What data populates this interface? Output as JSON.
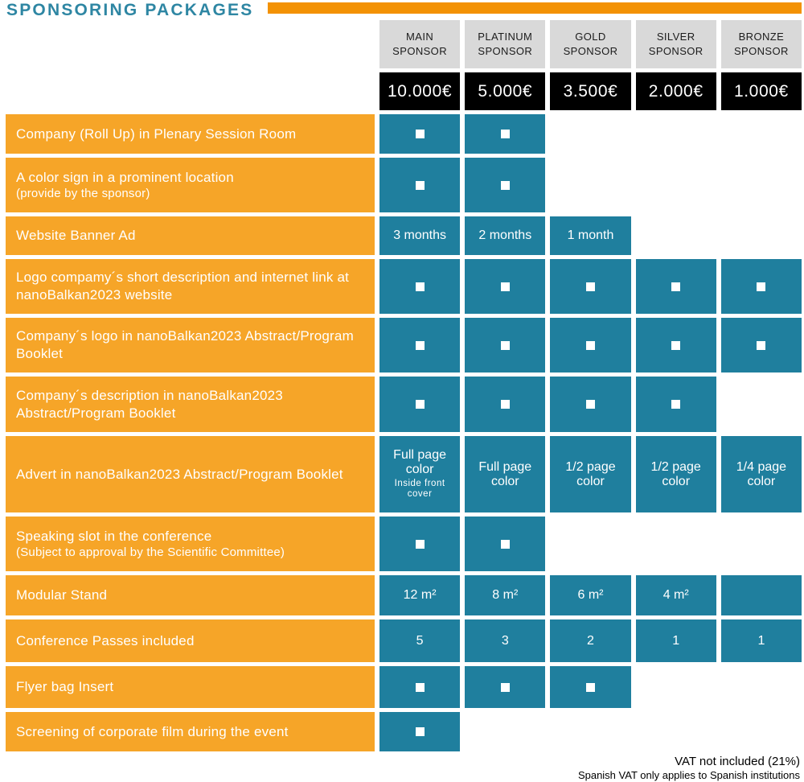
{
  "title": "SPONSORING PACKAGES",
  "columns": [
    {
      "key": "main",
      "label": "MAIN SPONSOR",
      "price": "10.000€"
    },
    {
      "key": "platinum",
      "label": "PLATINUM SPONSOR",
      "price": "5.000€"
    },
    {
      "key": "gold",
      "label": "GOLD SPONSOR",
      "price": "3.500€"
    },
    {
      "key": "silver",
      "label": "SILVER SPONSOR",
      "price": "2.000€"
    },
    {
      "key": "bronze",
      "label": "BRONZE SPONSOR",
      "price": "1.000€"
    }
  ],
  "rows": [
    {
      "label": "Company (Roll Up) in Plenary Session Room",
      "cells": [
        {
          "type": "check"
        },
        {
          "type": "check"
        },
        {
          "type": "none"
        },
        {
          "type": "none"
        },
        {
          "type": "none"
        }
      ]
    },
    {
      "label": "A color sign in a prominent location",
      "sublabel": "(provide by the sponsor)",
      "cells": [
        {
          "type": "check"
        },
        {
          "type": "check"
        },
        {
          "type": "none"
        },
        {
          "type": "none"
        },
        {
          "type": "none"
        }
      ]
    },
    {
      "label": "Website Banner Ad",
      "cells": [
        {
          "type": "text",
          "text": "3 months"
        },
        {
          "type": "text",
          "text": "2 months"
        },
        {
          "type": "text",
          "text": "1 month"
        },
        {
          "type": "none"
        },
        {
          "type": "none"
        }
      ]
    },
    {
      "label": "Logo compamy´s short description and internet link at nanoBalkan2023 website",
      "cells": [
        {
          "type": "check"
        },
        {
          "type": "check"
        },
        {
          "type": "check"
        },
        {
          "type": "check"
        },
        {
          "type": "check"
        }
      ]
    },
    {
      "label": "Company´s logo in nanoBalkan2023 Abstract/Program Booklet",
      "cells": [
        {
          "type": "check"
        },
        {
          "type": "check"
        },
        {
          "type": "check"
        },
        {
          "type": "check"
        },
        {
          "type": "check"
        }
      ]
    },
    {
      "label": "Company´s description in nanoBalkan2023 Abstract/Program Booklet",
      "cells": [
        {
          "type": "check"
        },
        {
          "type": "check"
        },
        {
          "type": "check"
        },
        {
          "type": "check"
        },
        {
          "type": "none"
        }
      ]
    },
    {
      "label": "Advert in nanoBalkan2023 Abstract/Program Booklet",
      "cells": [
        {
          "type": "text",
          "text": "Full page color",
          "subtext": "Inside front cover"
        },
        {
          "type": "text",
          "text": "Full page color"
        },
        {
          "type": "text",
          "text": "1/2 page color"
        },
        {
          "type": "text",
          "text": "1/2 page color"
        },
        {
          "type": "text",
          "text": "1/4 page color"
        }
      ]
    },
    {
      "label": "Speaking slot in the conference",
      "sublabel": "(Subject to approval by the Scientific Committee)",
      "cells": [
        {
          "type": "check"
        },
        {
          "type": "check"
        },
        {
          "type": "none"
        },
        {
          "type": "none"
        },
        {
          "type": "none"
        }
      ]
    },
    {
      "label": "Modular Stand",
      "cells": [
        {
          "type": "text",
          "text": "12 m²"
        },
        {
          "type": "text",
          "text": "8 m²"
        },
        {
          "type": "text",
          "text": "6 m²"
        },
        {
          "type": "text",
          "text": "4 m²"
        },
        {
          "type": "blank"
        }
      ]
    },
    {
      "label": "Conference Passes included",
      "cells": [
        {
          "type": "text",
          "text": "5"
        },
        {
          "type": "text",
          "text": "3"
        },
        {
          "type": "text",
          "text": "2"
        },
        {
          "type": "text",
          "text": "1"
        },
        {
          "type": "text",
          "text": "1"
        }
      ]
    },
    {
      "label": "Flyer bag Insert",
      "cells": [
        {
          "type": "check"
        },
        {
          "type": "check"
        },
        {
          "type": "check"
        },
        {
          "type": "none"
        },
        {
          "type": "none"
        }
      ]
    },
    {
      "label": "Screening of corporate film during the event",
      "cells": [
        {
          "type": "check"
        },
        {
          "type": "none"
        },
        {
          "type": "none"
        },
        {
          "type": "none"
        },
        {
          "type": "none"
        }
      ]
    }
  ],
  "footer": {
    "vat_note": "VAT not included (21%)",
    "vat_detail": "Spanish VAT only applies to Spanish institutions"
  },
  "icons": {
    "included_marker": "check-square-icon"
  },
  "colors": {
    "title_teal": "#2E86A3",
    "accent_bar_orange": "#F39204",
    "row_orange": "#F6A528",
    "cell_teal": "#1F7F9E",
    "header_gray": "#D9D9D9",
    "price_black": "#000000",
    "check_white": "#FFFFFF"
  }
}
